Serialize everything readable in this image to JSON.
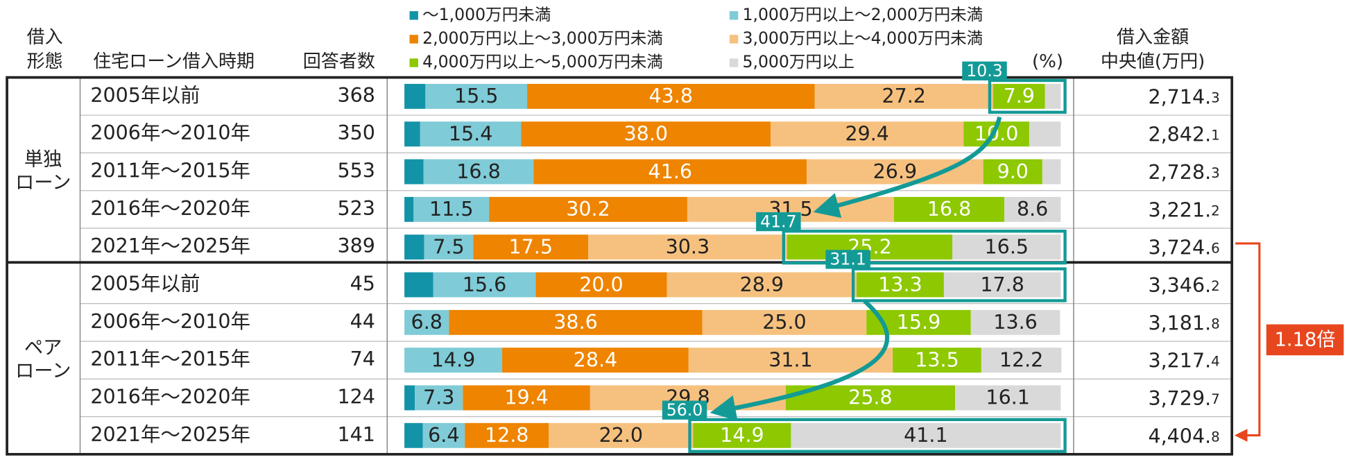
{
  "chart_data": {
    "type": "stacked-bar-h",
    "headers": {
      "type_col": [
        "借入",
        "形態"
      ],
      "period_col": "住宅ローン借入時期",
      "count_col": "回答者数",
      "median_col": [
        "借入金額",
        "中央値(万円)"
      ],
      "unit": "(%)"
    },
    "groups": [
      {
        "label": [
          "単独",
          "ローン"
        ],
        "rows": [
          0,
          1,
          2,
          3,
          4
        ]
      },
      {
        "label": [
          "ペア",
          "ローン"
        ],
        "rows": [
          5,
          6,
          7,
          8,
          9
        ]
      }
    ],
    "categories": [
      "2005年以前",
      "2006年～2010年",
      "2011年～2015年",
      "2016年～2020年",
      "2021年～2025年",
      "2005年以前",
      "2006年～2010年",
      "2011年～2015年",
      "2016年～2020年",
      "2021年～2025年"
    ],
    "respondents": [
      368,
      350,
      553,
      523,
      389,
      45,
      44,
      74,
      124,
      141
    ],
    "medians": [
      "2,714.3",
      "2,842.1",
      "2,728.3",
      "3,221.2",
      "3,724.6",
      "3,346.2",
      "3,181.8",
      "3,217.4",
      "3,729.7",
      "4,404.8"
    ],
    "xlim": [
      0,
      100
    ],
    "series": [
      {
        "name": "～1,000万円未満",
        "color": "#1393a8",
        "values": [
          3.2,
          2.4,
          2.9,
          1.4,
          3.0,
          4.4,
          0,
          0,
          1.6,
          2.8
        ]
      },
      {
        "name": "1,000万円以上～2,000万円未満",
        "color": "#7fcbd7",
        "label_color": "#222",
        "values": [
          15.5,
          15.4,
          16.8,
          11.5,
          7.5,
          15.6,
          6.8,
          14.9,
          7.3,
          6.4
        ]
      },
      {
        "name": "2,000万円以上～3,000万円未満",
        "color": "#ee8400",
        "label_color": "#fff",
        "values": [
          43.8,
          38.0,
          41.6,
          30.2,
          17.5,
          20.0,
          38.6,
          28.4,
          19.4,
          12.8
        ],
        "value_labels": [
          "43.8",
          "38.0",
          "41.6",
          "30.2",
          "17.5",
          "20.0",
          "38.6",
          "28.4",
          "19.4",
          "12.8"
        ]
      },
      {
        "name": "3,000万円以上～4,000万円未満",
        "color": "#f6c17f",
        "label_color": "#222",
        "values": [
          27.2,
          29.4,
          26.9,
          31.5,
          30.3,
          28.9,
          25.0,
          31.1,
          29.8,
          22.0
        ],
        "value_labels": [
          "27.2",
          "29.4",
          "26.9",
          "31.5",
          "30.3",
          "28.9",
          "25.0",
          "31.1",
          "29.8",
          "22.0"
        ]
      },
      {
        "name": "4,000万円以上～5,000万円未満",
        "color": "#8dc800",
        "label_color": "#fff",
        "values": [
          7.9,
          10.0,
          9.0,
          16.8,
          25.2,
          13.3,
          15.9,
          13.5,
          25.8,
          14.9
        ],
        "value_labels": [
          "7.9",
          "10.0",
          "9.0",
          "16.8",
          "25.2",
          "13.3",
          "15.9",
          "13.5",
          "25.8",
          "14.9"
        ]
      },
      {
        "name": "5,000万円以上",
        "color": "#d9d9d9",
        "label_color": "#222",
        "values": [
          2.4,
          4.8,
          2.8,
          8.6,
          16.5,
          17.8,
          13.6,
          12.2,
          16.1,
          41.1
        ],
        "value_labels": [
          null,
          null,
          null,
          "8.6",
          "16.5",
          "17.8",
          "13.6",
          "12.2",
          "16.1",
          "41.1"
        ]
      }
    ],
    "highlights": [
      {
        "row": 0,
        "label": "10.3"
      },
      {
        "row": 4,
        "label": "41.7"
      },
      {
        "row": 5,
        "label": "31.1"
      },
      {
        "row": 9,
        "label": "56.0"
      }
    ],
    "ratio_label": "1.18倍"
  }
}
